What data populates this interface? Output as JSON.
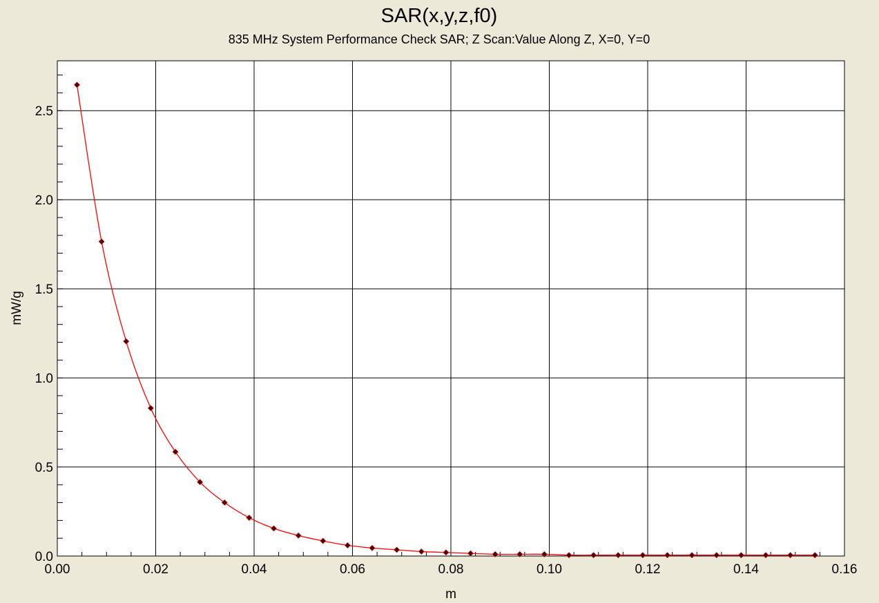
{
  "chart_data": {
    "type": "line",
    "title": "SAR(x,y,z,f0)",
    "subtitle": "835 MHz System Performance Check SAR; Z Scan:Value Along Z, X=0, Y=0",
    "xlabel": "m",
    "ylabel": "mW/g",
    "xlim": [
      0.0,
      0.16
    ],
    "ylim": [
      0.0,
      2.78
    ],
    "x_ticks": [
      "0.00",
      "0.02",
      "0.04",
      "0.06",
      "0.08",
      "0.10",
      "0.12",
      "0.14",
      "0.16"
    ],
    "y_ticks": [
      "0.0",
      "0.5",
      "1.0",
      "1.5",
      "2.0",
      "2.5"
    ],
    "grid": true,
    "legend": "none",
    "line_color": "#ff0000",
    "marker_color": "#400000",
    "background_color": "#ffffff",
    "x": [
      0.004,
      0.009,
      0.014,
      0.019,
      0.024,
      0.029,
      0.034,
      0.039,
      0.044,
      0.049,
      0.054,
      0.059,
      0.064,
      0.069,
      0.074,
      0.079,
      0.084,
      0.089,
      0.094,
      0.099,
      0.104,
      0.109,
      0.114,
      0.119,
      0.124,
      0.129,
      0.134,
      0.139,
      0.144,
      0.149,
      0.154
    ],
    "series": [
      {
        "values": [
          2.645,
          1.765,
          1.205,
          0.83,
          0.585,
          0.415,
          0.3,
          0.215,
          0.155,
          0.115,
          0.085,
          0.06,
          0.045,
          0.035,
          0.025,
          0.02,
          0.015,
          0.01,
          0.01,
          0.01,
          0.005,
          0.005,
          0.005,
          0.005,
          0.005,
          0.005,
          0.005,
          0.005,
          0.005,
          0.005,
          0.005
        ]
      }
    ]
  }
}
